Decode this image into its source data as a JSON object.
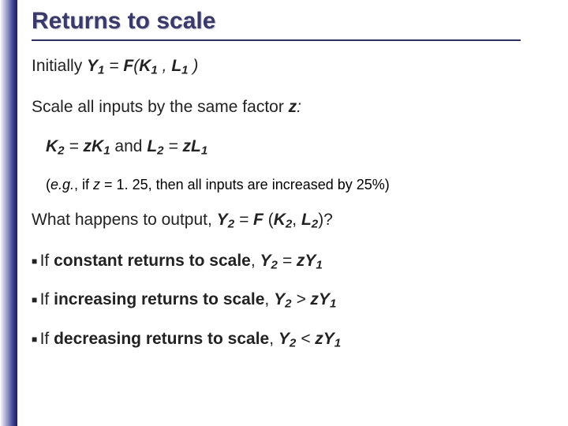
{
  "title": "Returns to scale",
  "colors": {
    "title": "#3a3a6a",
    "rule": "#303060",
    "text": "#222222",
    "background": "#ffffff",
    "stripe_gradient": [
      "#ffffff",
      "#d8d8e8",
      "#8d91c2",
      "#4a4f9e",
      "#2c317a",
      "#1c1f5a"
    ]
  },
  "typography": {
    "title_fontsize": 30,
    "body_fontsize": 21,
    "small_fontsize": 18,
    "title_font": "Arial",
    "body_font": "Verdana"
  },
  "lines": {
    "initially_pre": "Initially    ",
    "initially_eq_Y": "Y",
    "initially_eq_rest_1": " = ",
    "initially_eq_F": "F",
    "initially_eq_open": "(",
    "initially_eq_K": "K",
    "initially_eq_comma": " , ",
    "initially_eq_L": "L",
    "initially_eq_close": " )",
    "sub1": "1",
    "scale_text_1": "Scale all inputs by the same factor ",
    "scale_text_z": "z",
    "scale_text_colon": ":",
    "k2_K": "K",
    "k2_eq": " = ",
    "k2_zK": "zK",
    "and_text": "  and  ",
    "l2_L": "L",
    "l2_zL": "zL",
    "sub2": "2",
    "eg_open": "(",
    "eg_eg": "e.g.",
    "eg_mid1": ", if ",
    "eg_z": "z",
    "eg_mid2": " = 1. 25, then all inputs are increased by 25%)",
    "what_1": "What happens to output, ",
    "what_Y": "Y",
    "what_eq": " = ",
    "what_F": "F ",
    "what_open": "(",
    "what_K": "K",
    "what_comma": ", ",
    "what_L": "L",
    "what_close": ")?",
    "bullet_if": "If ",
    "constant": "constant returns to scale",
    "increasing": "increasing returns to scale",
    "decreasing": "decreasing returns to scale",
    "bullet_comma": ", ",
    "bullet_Y": "Y",
    "op_eq": " = ",
    "op_gt": " > ",
    "op_lt": " < ",
    "zY": "zY"
  }
}
